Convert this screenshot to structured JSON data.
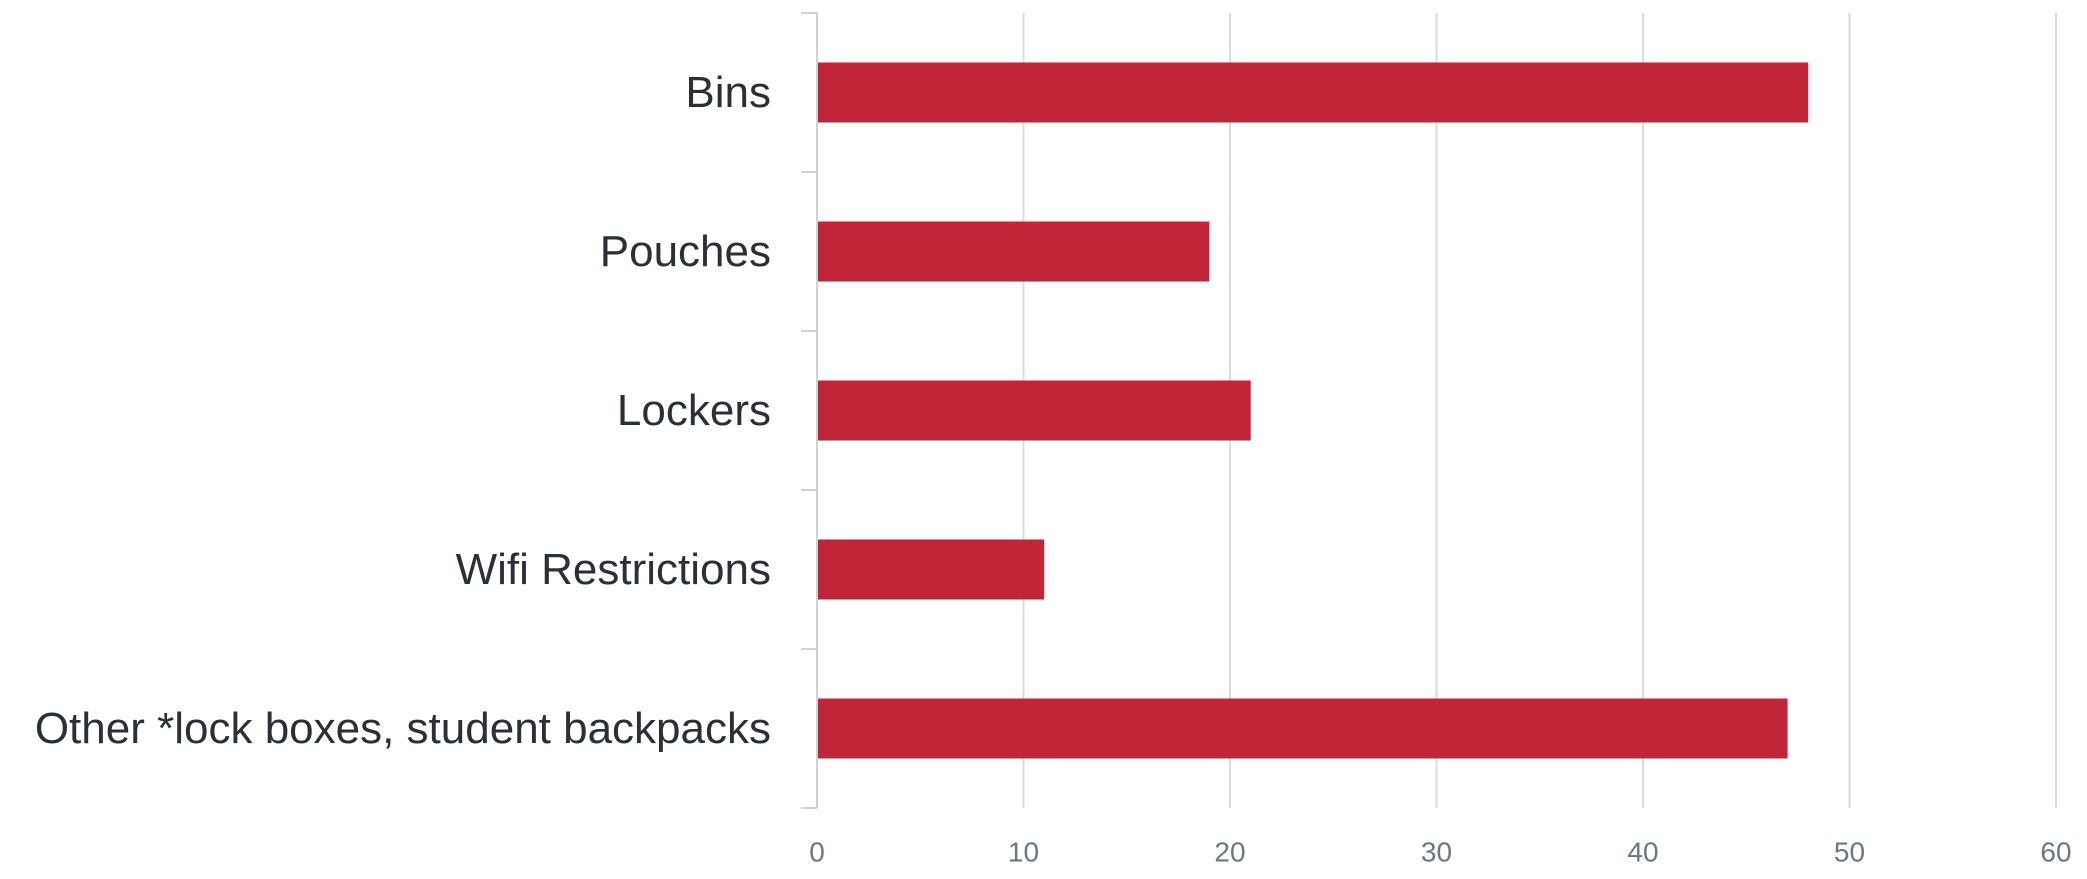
{
  "chart_data": {
    "type": "bar",
    "orientation": "horizontal",
    "categories": [
      "Bins",
      "Pouches",
      "Lockers",
      "Wifi Restrictions",
      "Other *lock boxes, student backpacks"
    ],
    "values": [
      48,
      19,
      21,
      11,
      47
    ],
    "xlim": [
      0,
      60
    ],
    "x_ticks": [
      0,
      10,
      20,
      30,
      40,
      50,
      60
    ],
    "grid": "vertical",
    "legend": "none",
    "colors": {
      "bar": "#c12638",
      "grid": "#d9dbe0",
      "axis": "#cfd3d8",
      "category_text": "#2b2f38",
      "tick_text": "#6b7785"
    }
  }
}
